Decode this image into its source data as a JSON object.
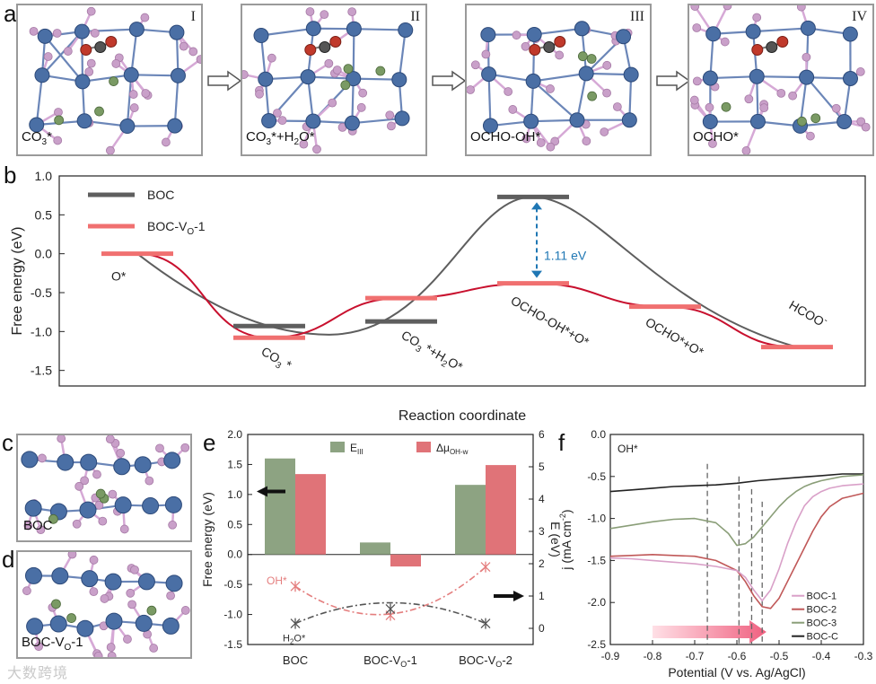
{
  "panel_labels": {
    "a": "a",
    "b": "b",
    "c": "c",
    "d": "d",
    "e": "e",
    "f": "f"
  },
  "panel_a": {
    "structures": [
      {
        "roman": "I",
        "caption": "CO",
        "caption_sub": "3",
        "caption_tail": "*"
      },
      {
        "roman": "II",
        "caption": "CO",
        "caption_sub": "3",
        "caption_tail": "*+H",
        "caption_sub2": "2",
        "caption_tail2": "O*"
      },
      {
        "roman": "III",
        "caption": "OCHO-OH*"
      },
      {
        "roman": "IV",
        "caption": "OCHO*"
      }
    ]
  },
  "panel_c": {
    "label": "BOC"
  },
  "panel_d": {
    "label": "BOC-V",
    "label_sub": "O",
    "label_tail": "-1"
  },
  "chart_data": [
    {
      "id": "b",
      "type": "line",
      "title": "",
      "xlabel": "Reaction coordinate",
      "ylabel": "Free energy (eV)",
      "ylim": [
        -1.7,
        1.0
      ],
      "yticks": [
        "1.0",
        "0.5",
        "0.0",
        "-0.5",
        "-1.0",
        "-1.5"
      ],
      "ytick_values": [
        1.0,
        0.5,
        0.0,
        -0.5,
        -1.0,
        -1.5
      ],
      "states": [
        "O*",
        "CO3*",
        "CO3*+H2O*",
        "OCHO-OH*+O*",
        "OCHO*+O*",
        "HCOO-"
      ],
      "state_labels": [
        {
          "main": "O",
          "sub": "",
          "tail": "*"
        },
        {
          "main": "CO",
          "sub": "3",
          "tail": " *"
        },
        {
          "main": "CO",
          "sub": "3",
          "tail": " *+H",
          "sub2": "2",
          "tail2": "O*"
        },
        {
          "main": "OCHO-OH*+O*"
        },
        {
          "main": "OCHO*+O*"
        },
        {
          "main": "HCOO",
          "sup": "-"
        }
      ],
      "series": [
        {
          "name": "BOC",
          "legend": "BOC",
          "color": "#5e5e5e",
          "levels": [
            null,
            -0.93,
            -0.87,
            0.73,
            null,
            null
          ]
        },
        {
          "name": "BOC-VO-1",
          "legend_main": "BOC-V",
          "legend_sub": "O",
          "legend_tail": "-1",
          "color": "#f07070",
          "curve_color": "#c8102e",
          "levels": [
            0.0,
            -1.08,
            -0.57,
            -0.38,
            -0.68,
            -1.2
          ]
        }
      ],
      "annotation": {
        "text": "1.11 eV",
        "value": 1.11,
        "color": "#1f77b4"
      }
    },
    {
      "id": "e",
      "type": "bar",
      "ylabel_left": "Free energy (eV)",
      "ylabel_right": "E (eV)",
      "ylim_left": [
        -1.5,
        2.0
      ],
      "yticks_left": [
        "2.0",
        "1.5",
        "1.0",
        "0.5",
        "0.0",
        "-0.5",
        "-1.0",
        "-1.5"
      ],
      "yticks_left_values": [
        2.0,
        1.5,
        1.0,
        0.5,
        0.0,
        -0.5,
        -1.0,
        -1.5
      ],
      "ylim_right": [
        -0.5,
        6
      ],
      "yticks_right": [
        "6",
        "5",
        "4",
        "3",
        "2",
        "1",
        "0"
      ],
      "yticks_right_values": [
        6,
        5,
        4,
        3,
        2,
        1,
        0
      ],
      "categories": [
        "BOC",
        "BOC-VO-1",
        "BOC-VO-2"
      ],
      "category_labels": [
        {
          "main": "BOC"
        },
        {
          "main": "BOC-V",
          "sub": "O",
          "tail": "-1"
        },
        {
          "main": "BOC-V",
          "sub": "O",
          "tail": "-2"
        }
      ],
      "legend": [
        {
          "main": "E",
          "sub": "III",
          "color": "#8da382"
        },
        {
          "main": "Δμ",
          "sub": "OH-w",
          "color": "#e07378"
        }
      ],
      "bars": [
        {
          "name": "E_III",
          "color": "#8da382",
          "values": [
            1.6,
            0.2,
            1.16
          ]
        },
        {
          "name": "Δμ_OH-w",
          "color": "#e07378",
          "values": [
            1.34,
            -0.2,
            1.49
          ]
        }
      ],
      "lines": [
        {
          "name": "OH*",
          "label": "OH*",
          "color": "#e47e7e",
          "values": [
            1.3,
            0.4,
            1.9
          ]
        },
        {
          "name": "H2O*",
          "label_main": "H",
          "label_sub": "2",
          "label_tail": "O*",
          "color": "#555555",
          "values": [
            0.15,
            0.6,
            0.15
          ]
        }
      ]
    },
    {
      "id": "f",
      "type": "line",
      "xlabel": "Potential (V vs. Ag/AgCl)",
      "ylabel_main": "j (mA cm",
      "ylabel_sup": "-2",
      "ylabel_tail": ")",
      "xlim": [
        -0.9,
        -0.3
      ],
      "ylim": [
        -2.5,
        0.0
      ],
      "xticks": [
        "-0.9",
        "-0.8",
        "-0.7",
        "-0.6",
        "-0.5",
        "-0.4",
        "-0.3"
      ],
      "xtick_values": [
        -0.9,
        -0.8,
        -0.7,
        -0.6,
        -0.5,
        -0.4,
        -0.3
      ],
      "yticks": [
        "0.0",
        "-0.5",
        "-1.0",
        "-1.5",
        "-2.0",
        "-2.5"
      ],
      "ytick_values": [
        0.0,
        -0.5,
        -1.0,
        -1.5,
        -2.0,
        -2.5
      ],
      "annotation": "OH*",
      "dashed_x": [
        -0.67,
        -0.595,
        -0.565,
        -0.54
      ],
      "series": [
        {
          "name": "BOC-1",
          "color": "#d9a0c8",
          "x": [
            -0.9,
            -0.85,
            -0.8,
            -0.75,
            -0.7,
            -0.65,
            -0.6,
            -0.58,
            -0.56,
            -0.54,
            -0.52,
            -0.5,
            -0.48,
            -0.46,
            -0.44,
            -0.42,
            -0.4,
            -0.38,
            -0.35,
            -0.3
          ],
          "y": [
            -1.47,
            -1.48,
            -1.5,
            -1.52,
            -1.54,
            -1.57,
            -1.62,
            -1.7,
            -1.85,
            -1.98,
            -1.85,
            -1.6,
            -1.3,
            -1.05,
            -0.85,
            -0.74,
            -0.68,
            -0.64,
            -0.61,
            -0.59
          ]
        },
        {
          "name": "BOC-2",
          "color": "#c05858",
          "x": [
            -0.9,
            -0.85,
            -0.8,
            -0.75,
            -0.7,
            -0.65,
            -0.6,
            -0.58,
            -0.56,
            -0.54,
            -0.52,
            -0.5,
            -0.48,
            -0.46,
            -0.44,
            -0.42,
            -0.4,
            -0.38,
            -0.35,
            -0.3
          ],
          "y": [
            -1.45,
            -1.44,
            -1.43,
            -1.44,
            -1.45,
            -1.5,
            -1.62,
            -1.75,
            -1.92,
            -2.05,
            -2.07,
            -1.95,
            -1.75,
            -1.55,
            -1.35,
            -1.15,
            -0.98,
            -0.86,
            -0.76,
            -0.7
          ]
        },
        {
          "name": "BOC-3",
          "color": "#8a9e78",
          "x": [
            -0.9,
            -0.85,
            -0.8,
            -0.75,
            -0.7,
            -0.65,
            -0.62,
            -0.6,
            -0.58,
            -0.56,
            -0.54,
            -0.52,
            -0.5,
            -0.48,
            -0.46,
            -0.44,
            -0.42,
            -0.4,
            -0.35,
            -0.3
          ],
          "y": [
            -1.12,
            -1.08,
            -1.04,
            -1.01,
            -1.0,
            -1.05,
            -1.18,
            -1.32,
            -1.3,
            -1.22,
            -1.1,
            -0.98,
            -0.86,
            -0.76,
            -0.68,
            -0.62,
            -0.58,
            -0.55,
            -0.5,
            -0.48
          ]
        },
        {
          "name": "BOC-C",
          "color": "#222222",
          "x": [
            -0.9,
            -0.85,
            -0.8,
            -0.75,
            -0.7,
            -0.65,
            -0.6,
            -0.55,
            -0.5,
            -0.45,
            -0.4,
            -0.35,
            -0.3
          ],
          "y": [
            -0.68,
            -0.66,
            -0.64,
            -0.62,
            -0.61,
            -0.6,
            -0.58,
            -0.55,
            -0.53,
            -0.51,
            -0.49,
            -0.47,
            -0.47
          ]
        }
      ]
    }
  ],
  "watermark": "大数跨境",
  "colors": {
    "ti": "#4a6fa5",
    "bi": "#c9a0c9",
    "o": "#c0392b",
    "green": "#7a9a64",
    "box": "#9a9a9a",
    "arrow_blue": "#1f77b4"
  }
}
